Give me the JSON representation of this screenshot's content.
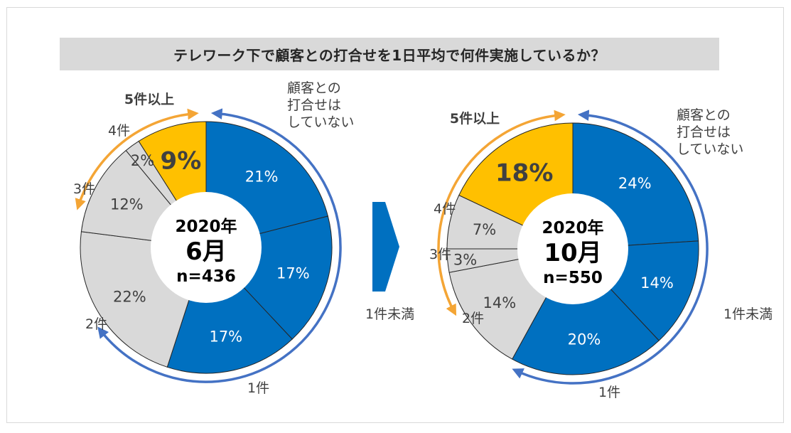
{
  "title": "テレワーク下で顧客との打合せを1日平均で何件実施しているか？",
  "colors": {
    "blue": "#0070c0",
    "gray": "#d9d9d9",
    "orange": "#ffc000",
    "arrow_blue": "#4472c4",
    "arrow_orange": "#f4a535"
  },
  "chart_data": [
    {
      "type": "pie",
      "center_label": {
        "year": "2020年",
        "month": "6月",
        "n": "n=436"
      },
      "slices": [
        {
          "category": "顧客との打合せはしていない",
          "value": 21,
          "label": "21%",
          "color": "blue"
        },
        {
          "category": "1件未満",
          "value": 17,
          "label": "17%",
          "color": "blue"
        },
        {
          "category": "1件",
          "value": 17,
          "label": "17%",
          "color": "blue"
        },
        {
          "category": "2件",
          "value": 22,
          "label": "22%",
          "color": "gray"
        },
        {
          "category": "3件",
          "value": 12,
          "label": "12%",
          "color": "gray"
        },
        {
          "category": "4件",
          "value": 2,
          "label": "2%",
          "color": "gray"
        },
        {
          "category": "5件以上",
          "value": 9,
          "label": "9%",
          "color": "orange"
        }
      ],
      "category_labels": {
        "none": [
          "顧客との",
          "打合せは",
          "していない"
        ],
        "lt1": "1件未満",
        "one": "1件",
        "two": "2件",
        "three": "3件",
        "four": "4件",
        "five_plus": "5件以上"
      }
    },
    {
      "type": "pie",
      "center_label": {
        "year": "2020年",
        "month": "10月",
        "n": "n=550"
      },
      "slices": [
        {
          "category": "顧客との打合せはしていない",
          "value": 24,
          "label": "24%",
          "color": "blue"
        },
        {
          "category": "1件未満",
          "value": 14,
          "label": "14%",
          "color": "blue"
        },
        {
          "category": "1件",
          "value": 20,
          "label": "20%",
          "color": "blue"
        },
        {
          "category": "2件",
          "value": 14,
          "label": "14%",
          "color": "gray"
        },
        {
          "category": "3件",
          "value": 3,
          "label": "3%",
          "color": "gray"
        },
        {
          "category": "4件",
          "value": 7,
          "label": "7%",
          "color": "gray"
        },
        {
          "category": "5件以上",
          "value": 18,
          "label": "18%",
          "color": "orange"
        }
      ],
      "category_labels": {
        "none": [
          "顧客との",
          "打合せは",
          "していない"
        ],
        "lt1": "1件未満",
        "one": "1件",
        "two": "2件",
        "three": "3件",
        "four": "4件",
        "five_plus": "5件以上"
      }
    }
  ]
}
